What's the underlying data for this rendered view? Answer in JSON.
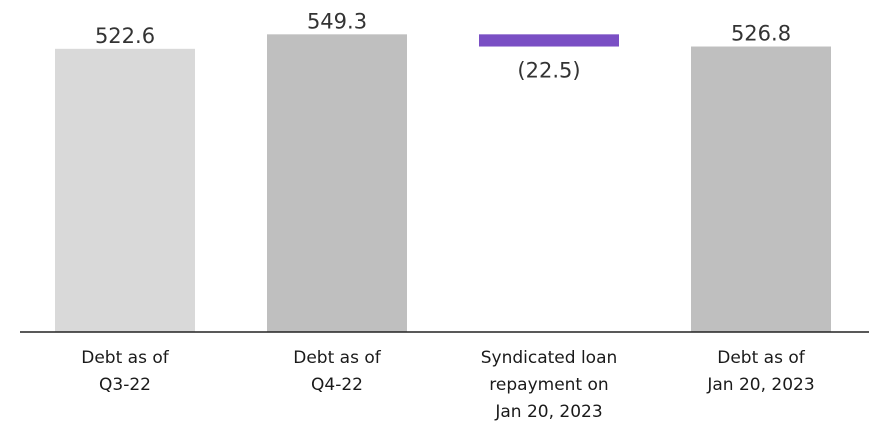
{
  "chart_data": {
    "type": "bar",
    "subtype": "waterfall",
    "categories": [
      [
        "Debt as of",
        "Q3-22"
      ],
      [
        "Debt as of",
        "Q4-22"
      ],
      [
        "Syndicated loan",
        "repayment on",
        "Jan 20, 2023"
      ],
      [
        "Debt as of",
        "Jan 20, 2023"
      ]
    ],
    "values": [
      522.6,
      549.3,
      -22.5,
      526.8
    ],
    "value_labels": [
      "522.6",
      "549.3",
      "(22.5)",
      "526.8"
    ],
    "kinds": [
      "total",
      "total",
      "delta",
      "total"
    ],
    "colors": [
      "#d9d9d9",
      "#bfbfbf",
      "#7a4fc4",
      "#bfbfbf"
    ],
    "ylim": [
      0,
      560
    ],
    "title": "",
    "xlabel": "",
    "ylabel": "",
    "grid": false,
    "legend": "none"
  }
}
